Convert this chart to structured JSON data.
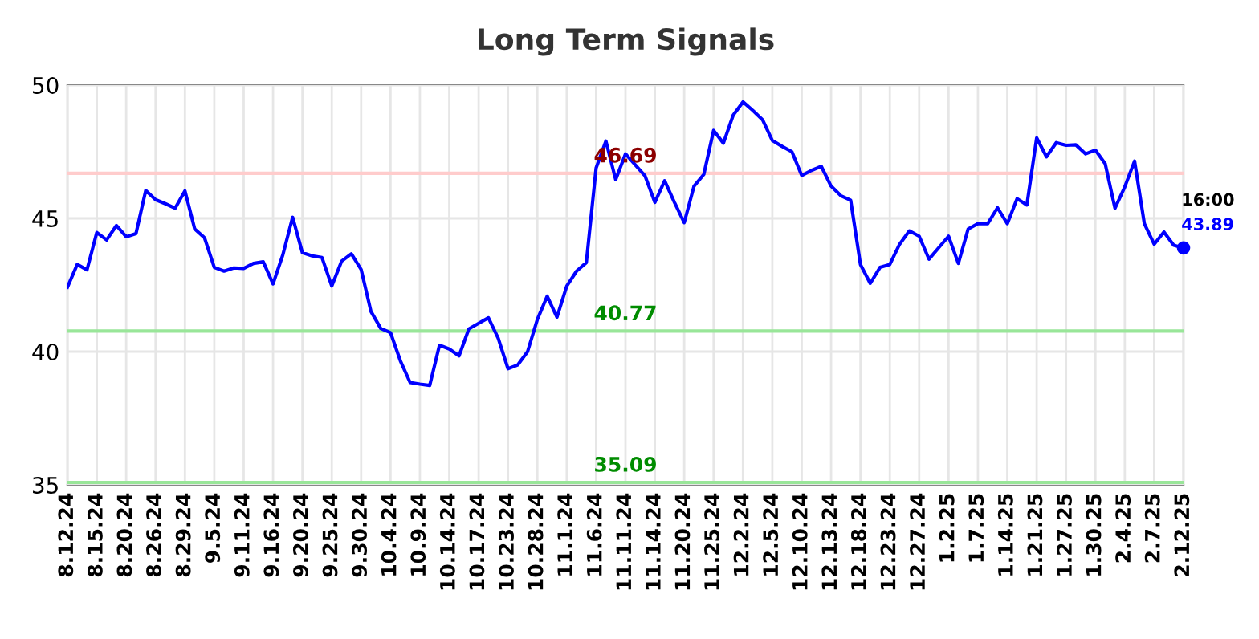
{
  "chart_data": {
    "type": "line",
    "title": "Long Term Signals",
    "categories": [
      "8.12.24",
      null,
      null,
      "8.15.24",
      null,
      null,
      "8.20.24",
      null,
      null,
      "8.26.24",
      null,
      null,
      "8.29.24",
      null,
      null,
      "9.5.24",
      null,
      null,
      "9.11.24",
      null,
      null,
      "9.16.24",
      null,
      null,
      "9.20.24",
      null,
      null,
      "9.25.24",
      null,
      null,
      "9.30.24",
      null,
      null,
      "10.4.24",
      null,
      null,
      "10.9.24",
      null,
      null,
      "10.14.24",
      null,
      null,
      "10.17.24",
      null,
      null,
      "10.23.24",
      null,
      null,
      "10.28.24",
      null,
      null,
      "11.1.24",
      null,
      null,
      "11.6.24",
      null,
      null,
      "11.11.24",
      null,
      null,
      "11.14.24",
      null,
      null,
      "11.20.24",
      null,
      null,
      "11.25.24",
      null,
      null,
      "12.2.24",
      null,
      null,
      "12.5.24",
      null,
      null,
      "12.10.24",
      null,
      null,
      "12.13.24",
      null,
      null,
      "12.18.24",
      null,
      null,
      "12.23.24",
      null,
      null,
      "12.27.24",
      null,
      null,
      "1.2.25",
      null,
      null,
      "1.7.25",
      null,
      null,
      "1.14.25",
      null,
      null,
      "1.21.25",
      null,
      null,
      "1.27.25",
      null,
      null,
      "1.30.25",
      null,
      null,
      "2.4.25",
      null,
      null,
      "2.7.25",
      null,
      null,
      "2.12.25"
    ],
    "series": [
      {
        "color": "#0000ff",
        "values": [
          42.42,
          43.27,
          43.07,
          44.47,
          44.19,
          44.73,
          44.31,
          44.43,
          46.05,
          45.7,
          45.55,
          45.38,
          46.03,
          44.6,
          44.27,
          43.16,
          43.02,
          43.14,
          43.12,
          43.31,
          43.37,
          42.54,
          43.63,
          45.04,
          43.71,
          43.59,
          43.53,
          42.46,
          43.39,
          43.67,
          43.08,
          41.51,
          40.87,
          40.71,
          39.66,
          38.84,
          38.78,
          38.73,
          40.24,
          40.1,
          39.84,
          40.85,
          41.06,
          41.27,
          40.5,
          39.36,
          39.5,
          40.0,
          41.21,
          42.08,
          41.29,
          42.46,
          43.02,
          43.34,
          46.89,
          47.9,
          46.45,
          47.42,
          47.01,
          46.59,
          45.6,
          46.41,
          45.6,
          44.84,
          46.21,
          46.65,
          48.3,
          47.82,
          48.87,
          49.37,
          49.05,
          48.7,
          47.92,
          47.7,
          47.5,
          46.61,
          46.8,
          46.95,
          46.21,
          45.85,
          45.68,
          43.27,
          42.56,
          43.16,
          43.27,
          44.03,
          44.53,
          44.33,
          43.47,
          43.9,
          44.33,
          43.31,
          44.6,
          44.8,
          44.8,
          45.4,
          44.8,
          45.74,
          45.5,
          48.02,
          47.31,
          47.84,
          47.74,
          47.76,
          47.42,
          47.56,
          47.05,
          45.38,
          46.18,
          47.15,
          44.8,
          44.03,
          44.49,
          43.99,
          43.89
        ]
      }
    ],
    "ylim": [
      35,
      50
    ],
    "yticks": [
      35,
      40,
      45,
      50
    ],
    "grid": true,
    "ref_lines": [
      {
        "axis": "y",
        "value": 46.69,
        "label": "46.69",
        "color": "#ffcccc"
      },
      {
        "axis": "y",
        "value": 40.77,
        "label": "40.77",
        "color": "#99e699"
      },
      {
        "axis": "y",
        "value": 35.09,
        "label": "35.09",
        "color": "#99e699"
      }
    ],
    "annotations": [
      {
        "text": "16:00",
        "x": "2.12.25",
        "y": 43.89
      },
      {
        "text": "43.89",
        "x": "2.12.25",
        "y": 43.89
      }
    ]
  }
}
